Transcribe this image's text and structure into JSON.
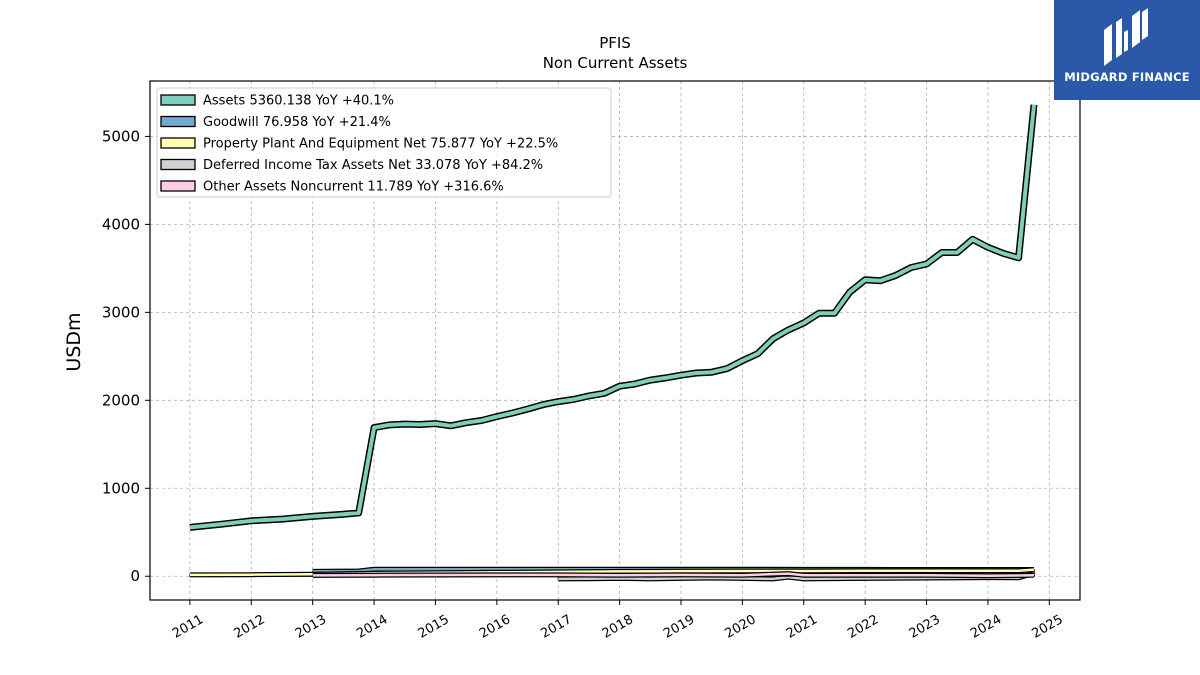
{
  "brand": {
    "name": "MIDGARD FINANCE",
    "color": "#2b58a8"
  },
  "chart_data": {
    "type": "line",
    "title": "PFIS",
    "subtitle": "Non Current  Assets",
    "xlabel": "",
    "ylabel": "USDm",
    "ylim": [
      -270,
      5630
    ],
    "xlim": [
      2010.35,
      2025.5
    ],
    "yticks": [
      0,
      1000,
      2000,
      3000,
      4000,
      5000
    ],
    "xticks": [
      "2011",
      "2012",
      "2013",
      "2014",
      "2015",
      "2016",
      "2017",
      "2018",
      "2019",
      "2020",
      "2021",
      "2022",
      "2023",
      "2024",
      "2025"
    ],
    "grid": true,
    "legend_position": "top-left",
    "series": [
      {
        "name": "Assets  5360.138 YoY +40.1%",
        "color": "#7fcdbb",
        "points": [
          [
            2011.0,
            555
          ],
          [
            2011.5,
            590
          ],
          [
            2012.0,
            630
          ],
          [
            2012.5,
            650
          ],
          [
            2013.0,
            680
          ],
          [
            2013.5,
            705
          ],
          [
            2013.75,
            720
          ],
          [
            2014.0,
            1690
          ],
          [
            2014.25,
            1720
          ],
          [
            2014.5,
            1730
          ],
          [
            2014.75,
            1725
          ],
          [
            2015.0,
            1735
          ],
          [
            2015.25,
            1710
          ],
          [
            2015.5,
            1745
          ],
          [
            2015.75,
            1770
          ],
          [
            2016.0,
            1815
          ],
          [
            2016.25,
            1855
          ],
          [
            2016.5,
            1900
          ],
          [
            2016.75,
            1950
          ],
          [
            2017.0,
            1985
          ],
          [
            2017.25,
            2010
          ],
          [
            2017.5,
            2050
          ],
          [
            2017.75,
            2080
          ],
          [
            2018.0,
            2160
          ],
          [
            2018.25,
            2185
          ],
          [
            2018.5,
            2230
          ],
          [
            2018.75,
            2255
          ],
          [
            2019.0,
            2285
          ],
          [
            2019.25,
            2310
          ],
          [
            2019.5,
            2320
          ],
          [
            2019.75,
            2360
          ],
          [
            2020.0,
            2450
          ],
          [
            2020.25,
            2530
          ],
          [
            2020.5,
            2700
          ],
          [
            2020.75,
            2800
          ],
          [
            2021.0,
            2880
          ],
          [
            2021.25,
            2990
          ],
          [
            2021.5,
            2990
          ],
          [
            2021.75,
            3230
          ],
          [
            2022.0,
            3370
          ],
          [
            2022.25,
            3360
          ],
          [
            2022.5,
            3420
          ],
          [
            2022.75,
            3510
          ],
          [
            2023.0,
            3550
          ],
          [
            2023.25,
            3680
          ],
          [
            2023.5,
            3680
          ],
          [
            2023.75,
            3830
          ],
          [
            2024.0,
            3740
          ],
          [
            2024.25,
            3670
          ],
          [
            2024.5,
            3620
          ],
          [
            2024.75,
            5360
          ]
        ]
      },
      {
        "name": "Goodwill  76.958 YoY +21.4%",
        "color": "#74a9cf",
        "points": [
          [
            2013.0,
            55
          ],
          [
            2013.75,
            60
          ],
          [
            2014.0,
            80
          ],
          [
            2015.0,
            80
          ],
          [
            2016.0,
            80
          ],
          [
            2017.0,
            80
          ],
          [
            2018.0,
            80
          ],
          [
            2019.0,
            80
          ],
          [
            2020.0,
            80
          ],
          [
            2021.0,
            78
          ],
          [
            2022.0,
            78
          ],
          [
            2023.0,
            77
          ],
          [
            2024.0,
            77
          ],
          [
            2024.75,
            77
          ]
        ]
      },
      {
        "name": "Property Plant And Equipment Net  75.877 YoY +22.5%",
        "color": "#ffffb3",
        "points": [
          [
            2011.0,
            15
          ],
          [
            2012.0,
            18
          ],
          [
            2013.0,
            22
          ],
          [
            2014.0,
            35
          ],
          [
            2015.0,
            40
          ],
          [
            2016.0,
            45
          ],
          [
            2017.0,
            50
          ],
          [
            2018.0,
            55
          ],
          [
            2019.0,
            58
          ],
          [
            2020.0,
            60
          ],
          [
            2021.0,
            60
          ],
          [
            2022.0,
            62
          ],
          [
            2023.0,
            62
          ],
          [
            2024.0,
            62
          ],
          [
            2024.5,
            62
          ],
          [
            2024.75,
            76
          ]
        ]
      },
      {
        "name": "Deferred Income Tax Assets Net  33.078 YoY +84.2%",
        "color": "#d0d1cd",
        "points": [
          [
            2017.0,
            -30
          ],
          [
            2017.5,
            -28
          ],
          [
            2018.0,
            -25
          ],
          [
            2018.5,
            -30
          ],
          [
            2019.0,
            -25
          ],
          [
            2019.5,
            -20
          ],
          [
            2020.0,
            -25
          ],
          [
            2020.5,
            -30
          ],
          [
            2020.75,
            -10
          ],
          [
            2021.0,
            -30
          ],
          [
            2022.0,
            -25
          ],
          [
            2023.0,
            -20
          ],
          [
            2024.0,
            -15
          ],
          [
            2024.5,
            -18
          ],
          [
            2024.75,
            33
          ]
        ]
      },
      {
        "name": "Other Assets Noncurrent  11.789 YoY +316.6%",
        "color": "#fccde5",
        "points": [
          [
            2013.0,
            10
          ],
          [
            2014.0,
            12
          ],
          [
            2015.0,
            14
          ],
          [
            2016.0,
            15
          ],
          [
            2017.0,
            15
          ],
          [
            2018.0,
            12
          ],
          [
            2019.0,
            15
          ],
          [
            2020.0,
            12
          ],
          [
            2020.75,
            30
          ],
          [
            2021.0,
            12
          ],
          [
            2022.0,
            12
          ],
          [
            2023.0,
            12
          ],
          [
            2024.0,
            5
          ],
          [
            2024.5,
            8
          ],
          [
            2024.75,
            12
          ]
        ]
      }
    ]
  }
}
